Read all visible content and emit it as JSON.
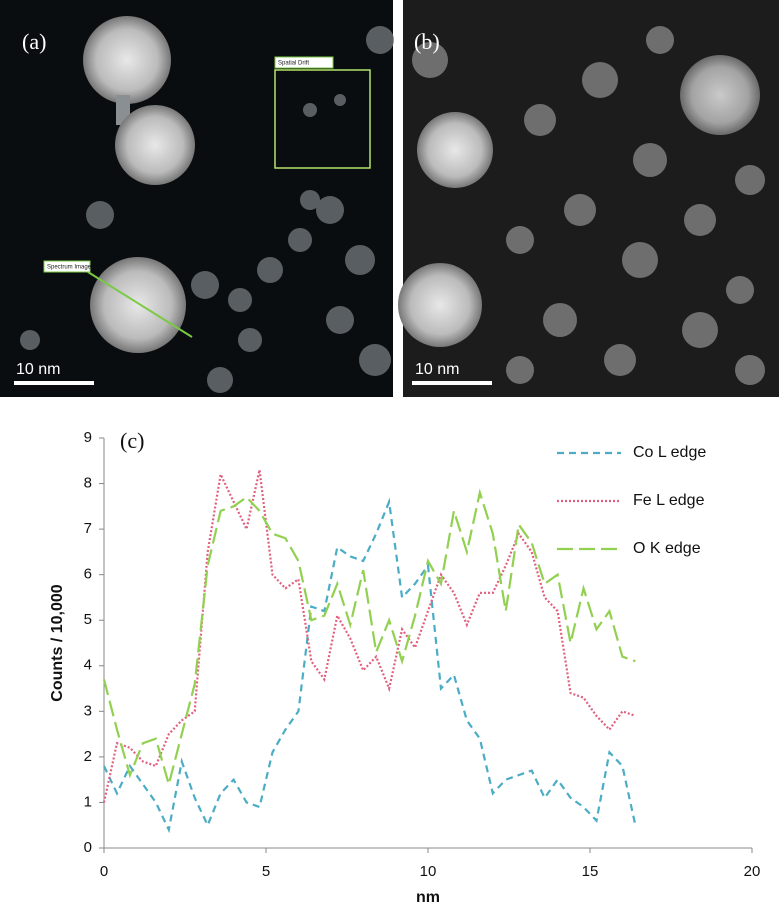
{
  "panel_a": {
    "label": "(a)",
    "scale_bar": "10 nm",
    "box_label": "Spatial Drift",
    "line_label": "Spectrum Image"
  },
  "panel_b": {
    "label": "(b)",
    "scale_bar": "10 nm"
  },
  "chart_data": {
    "type": "line",
    "panel_label": "(c)",
    "x_label": "nm",
    "y_label": "Counts / 10,000",
    "x": [
      0,
      0.4,
      0.8,
      1.2,
      1.6,
      2.0,
      2.4,
      2.8,
      3.2,
      3.6,
      4.0,
      4.4,
      4.8,
      5.2,
      5.6,
      6.0,
      6.4,
      6.8,
      7.2,
      7.6,
      8.0,
      8.4,
      8.8,
      9.2,
      9.6,
      10.0,
      10.4,
      10.8,
      11.2,
      11.6,
      12.0,
      12.4,
      12.8,
      13.2,
      13.6,
      14.0,
      14.4,
      14.8,
      15.2,
      15.6,
      16.0,
      16.4
    ],
    "series": [
      {
        "name": "Co L edge",
        "color": "#4bacc6",
        "dash": "7 5",
        "values": [
          1.8,
          1.2,
          1.8,
          1.4,
          1.0,
          0.4,
          1.9,
          1.1,
          0.5,
          1.2,
          1.5,
          1.0,
          0.9,
          2.1,
          2.6,
          3.0,
          5.3,
          5.2,
          6.6,
          6.4,
          6.3,
          6.9,
          7.6,
          5.5,
          5.8,
          6.2,
          3.5,
          3.8,
          2.8,
          2.4,
          1.2,
          1.5,
          1.6,
          1.7,
          1.1,
          1.5,
          1.1,
          0.9,
          0.6,
          2.1,
          1.8,
          0.5
        ]
      },
      {
        "name": "Fe L edge",
        "color": "#e0607e",
        "dash": "2 2",
        "values": [
          1.0,
          2.3,
          2.2,
          1.9,
          1.8,
          2.5,
          2.8,
          3.0,
          6.5,
          8.2,
          7.6,
          7.0,
          8.3,
          6.0,
          5.7,
          5.9,
          4.1,
          3.7,
          5.1,
          4.6,
          3.9,
          4.2,
          3.5,
          4.8,
          4.4,
          5.2,
          6.0,
          5.6,
          4.9,
          5.6,
          5.6,
          6.2,
          6.9,
          6.5,
          5.5,
          5.2,
          3.4,
          3.3,
          2.9,
          2.6,
          3.0,
          2.9
        ]
      },
      {
        "name": "O K edge",
        "color": "#92d050",
        "dash": "16 6",
        "values": [
          3.7,
          2.6,
          1.6,
          2.3,
          2.4,
          1.4,
          2.5,
          3.6,
          6.2,
          7.4,
          7.5,
          7.7,
          7.4,
          6.9,
          6.8,
          6.3,
          5.0,
          5.1,
          5.8,
          4.9,
          6.1,
          4.3,
          5.0,
          4.1,
          5.1,
          6.3,
          5.8,
          7.4,
          6.5,
          7.8,
          6.9,
          5.2,
          7.1,
          6.7,
          5.8,
          6.0,
          4.5,
          5.7,
          4.8,
          5.2,
          4.2,
          4.1
        ]
      }
    ],
    "xlim": [
      0,
      20
    ],
    "xticks": [
      0,
      5,
      10,
      15,
      20
    ],
    "ylim": [
      0,
      9
    ],
    "yticks": [
      0,
      1,
      2,
      3,
      4,
      5,
      6,
      7,
      8,
      9
    ],
    "grid": false,
    "legend": "top-right"
  }
}
